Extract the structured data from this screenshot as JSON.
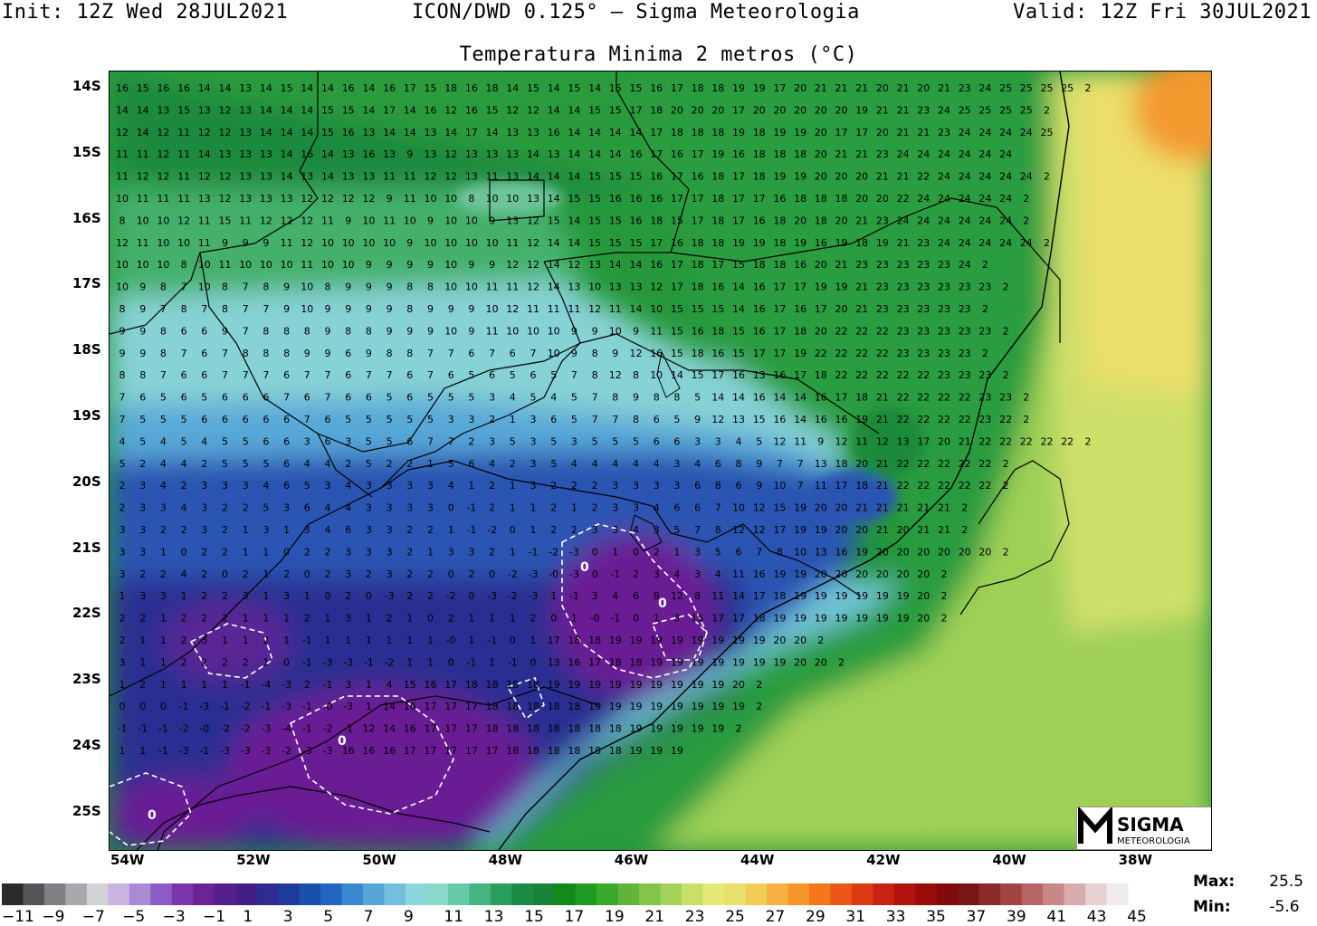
{
  "header": {
    "init": "Init: 12Z Wed 28JUL2021",
    "model": "ICON/DWD 0.125° — Sigma Meteorologia",
    "valid": "Valid: 12Z Fri 30JUL2021"
  },
  "map_title": "Temperatura Minima 2 metros (°C)",
  "lat_ticks": [
    "14S",
    "15S",
    "16S",
    "17S",
    "18S",
    "19S",
    "20S",
    "21S",
    "22S",
    "23S",
    "24S",
    "25S"
  ],
  "lon_ticks": [
    "54W",
    "52W",
    "50W",
    "48W",
    "46W",
    "44W",
    "42W",
    "40W",
    "38W"
  ],
  "colorbar": {
    "labels": [
      "−11",
      "−9",
      "−7",
      "−5",
      "−3",
      "−1",
      "1",
      "3",
      "5",
      "7",
      "9",
      "11",
      "13",
      "15",
      "17",
      "19",
      "21",
      "23",
      "25",
      "27",
      "29",
      "31",
      "33",
      "35",
      "37",
      "39",
      "41",
      "43",
      "45"
    ],
    "colors": [
      "#2b2b2b",
      "#555458",
      "#807f84",
      "#a9a8ad",
      "#d3d2d6",
      "#c9b3e3",
      "#a98ad6",
      "#8e5ac6",
      "#7a34ae",
      "#6c2493",
      "#54208b",
      "#421e86",
      "#2f2b90",
      "#203a9a",
      "#1b4fae",
      "#2366c2",
      "#3a88cf",
      "#58a6d8",
      "#72c0de",
      "#8dd6de",
      "#8ad8c8",
      "#67c9a8",
      "#45b583",
      "#2a9e5f",
      "#1a8a46",
      "#178238",
      "#108a1b",
      "#1f9a22",
      "#3aa92c",
      "#5fb53b",
      "#83c44a",
      "#a6d25a",
      "#c8df68",
      "#e5ea75",
      "#eae06d",
      "#f3cc58",
      "#f6b142",
      "#f69627",
      "#f3761a",
      "#ec5718",
      "#de3a14",
      "#c92212",
      "#b31410",
      "#990c0b",
      "#820a0a",
      "#7a1515",
      "#8e2929",
      "#a34444",
      "#b66464",
      "#c98888",
      "#d8acac",
      "#e7d0d0",
      "#f3ecec"
    ]
  },
  "map": {
    "colors": {
      "cold_purple": "#6a1f95",
      "cold_blue": "#24409a",
      "mid_cyan": "#82d4e0",
      "green": "#2a9e3c",
      "lime": "#a8d45a",
      "yellow": "#ecdf6a",
      "orange": "#f39a2e"
    },
    "zero_contour_label": "0",
    "grid_columns_lon": [
      -54.2,
      -53.9,
      -53.6,
      -53.3,
      -53.0,
      -52.7,
      -52.4,
      -52.1,
      -51.8,
      -51.5,
      -51.2,
      -50.9,
      -50.6,
      -50.3,
      -50.0,
      -49.7,
      -49.4,
      -49.1,
      -48.8,
      -48.5,
      -48.2,
      -47.9,
      -47.6,
      -47.3,
      -47.0,
      -46.7,
      -46.4,
      -46.1,
      -45.8,
      -45.5,
      -45.2,
      -44.9,
      -44.6,
      -44.3,
      -44.0,
      -43.7,
      -43.4,
      -43.1,
      -42.8,
      -42.5,
      -42.2,
      -41.9,
      -41.6,
      -41.3,
      -41.0,
      -40.7,
      -40.4,
      -40.1,
      -39.8,
      -39.5,
      -39.2,
      -38.9,
      -38.6,
      -38.3,
      -38.0,
      -37.7,
      -37.4,
      -37.1
    ],
    "value_rows": [
      {
        "lat": "14S",
        "values": "16 15 16 16 14 14 13 14 15 14 14 16 14 16 17 15 18 16 18 14 15 14 15 14 15 15 16 17 18 18 19 19 17 20 21 21 21 20 21 20 21 23 24 25 25 25 25 2"
      },
      {
        "lat": "",
        "values": "14 14 13 15 13 12 13 14 14 14 15 15 14 17 14 16 12 16 15 12 12 14 14 15 15 17 18 20 20 20 17 20 20 20 20 20 19 21 21 23 24 25 25 25 25 2"
      },
      {
        "lat": "",
        "values": "12 14 12 11 12 12 13 14 14 14 15 16 13 14 14 13 14 17 14 13 13 16 14 14 14 14 17 18 18 18 19 18 19 19 20 17 17 20 21 21 23 24 24 24 24 25"
      },
      {
        "lat": "15S",
        "values": "11 11 12 11 14 13 13 13 14 16 14 13 16 13 9 13 12 13 13 13 14 13 14 14 14 16 17 16 17 19 16 18 18 18 20 21 21 23 24 24 24 24 24 24"
      },
      {
        "lat": "",
        "values": "11 12 12 11 12 12 13 13 14 13 14 13 13 11 11 12 12 13 11 13 14 14 14 15 15 15 16 17 16 18 17 18 19 19 20 20 20 21 21 22 24 24 24 24 24 2"
      },
      {
        "lat": "16S",
        "values": "10 11 11 11 13 12 13 13 13 12 12 12 12 9 11 10 10 8 10 10 13 14 15 15 16 16 16 17 17 18 17 17 16 18 18 18 20 20 22 24 24 24 24 24 2"
      },
      {
        "lat": "",
        "values": "8 10 10 12 11 15 11 12 12 12 11 9 10 11 10 9 10 10 9 13 12 15 14 15 15 16 18 15 17 18 17 16 18 20 18 20 21 23 24 24 24 24 24 24 2"
      },
      {
        "lat": "",
        "values": "12 11 10 10 11 9 9 9 11 12 10 10 10 10 9 10 10 10 10 11 12 14 14 15 15 15 17 16 18 18 19 19 18 19 16 19 18 19 21 23 24 24 24 24 24 2"
      },
      {
        "lat": "17S",
        "values": "10 10 10 8 10 11 10 10 10 11 10 10 9 9 9 9 10 9 9 12 12 14 12 13 14 14 16 17 18 17 15 18 18 16 20 21 23 23 23 23 23 24 2"
      },
      {
        "lat": "",
        "values": "10 9 8 7 10 8 7 8 9 10 8 9 9 9 8 8 10 10 11 11 12 14 13 10 13 13 12 17 18 16 14 16 17 17 19 19 21 23 23 23 23 23 23 2"
      },
      {
        "lat": "18S",
        "values": "8 9 7 8 7 8 7 7 9 10 9 9 9 9 8 9 9 9 10 12 11 11 11 12 11 14 10 15 15 15 14 16 17 16 17 20 21 23 23 23 23 23 2"
      },
      {
        "lat": "",
        "values": "9 9 8 6 6 9 7 8 8 8 9 8 8 9 9 9 10 9 11 10 10 10 9 9 10 9 11 15 16 18 15 16 17 18 20 22 22 22 23 23 23 23 23 2"
      },
      {
        "lat": "",
        "values": "9 9 8 7 6 7 8 8 8 9 9 6 9 8 8 7 7 6 7 6 7 10 9 8 9 12 16 15 18 16 15 17 17 19 22 22 22 22 23 23 23 23 2"
      },
      {
        "lat": "19S",
        "values": "8 8 7 6 6 7 7 7 6 7 7 6 7 7 6 7 6 5 6 5 6 5 7 8 12 8 10 14 15 17 16 13 16 17 18 22 22 22 22 22 23 23 23 2"
      },
      {
        "lat": "",
        "values": "7 6 5 6 5 6 6 6 7 6 7 6 6 5 6 5 5 5 3 4 5 4 5 7 8 9 8 8 5 14 14 16 14 14 16 17 18 21 22 22 22 22 23 23 2"
      },
      {
        "lat": "",
        "values": "7 5 5 5 6 6 6 6 6 7 6 5 5 5 5 5 3 3 2 1 3 6 5 7 7 8 6 5 9 12 13 15 16 14 16 16 19 21 22 22 22 22 23 22 2"
      },
      {
        "lat": "20S",
        "values": "4 5 4 5 4 5 5 6 6 3 6 3 5 5 6 7 7 2 3 5 3 5 3 5 5 5 6 6 3 3 4 5 12 11 9 12 11 12 13 17 20 21 22 22 22 22 22 2"
      },
      {
        "lat": "",
        "values": "5 2 4 4 2 5 5 5 6 4 4 2 5 2 2 1 5 6 4 2 3 5 4 4 4 4 4 3 4 6 8 9 7 7 13 18 20 21 22 22 22 22 22 2"
      },
      {
        "lat": "",
        "values": "2 3 4 2 3 3 3 4 6 5 3 4 3 3 3 3 4 1 2 1 3 2 2 2 3 3 3 3 6 8 6 9 10 7 11 17 18 21 22 22 22 22 22 2"
      },
      {
        "lat": "21S",
        "values": "2 3 3 4 3 2 2 5 3 6 4 4 3 3 3 3 0 -1 2 1 1 2 1 2 3 3 4 6 6 7 10 12 15 19 20 20 21 21 21 21 21 2"
      },
      {
        "lat": "",
        "values": "3 3 2 2 3 2 1 3 1 3 4 6 3 3 2 2 1 -1 -2 0 1 2 2 3 3 4 3 5 7 8 12 12 17 19 19 20 20 21 20 21 21 2"
      },
      {
        "lat": "22S",
        "values": "3 3 1 0 2 2 1 1 0 2 2 3 3 3 2 1 3 3 2 1 -1 -2 -3 0 1 0 2 1 3 5 6 7 8 10 13 16 19 20 20 20 20 20 20 2"
      },
      {
        "lat": "",
        "values": "3 2 2 4 2 0 2 1 2 0 2 3 2 3 2 2 0 2 0 -2 -3 -0 -3 0 -1 2 3 4 3 4 11 16 19 19 20 20 20 20 20 20 2"
      },
      {
        "lat": "",
        "values": "1 3 3 1 2 2 3 1 3 1 0 2 0 -3 2 2 -2 0 -3 -2 -3 1 -1 3 4 6 8 12 8 11 14 17 18 19 19 19 19 19 19 20 2"
      },
      {
        "lat": "23S",
        "values": "2 2 1 2 2 2 1 1 1 2 1 3 1 2 1 0 2 1 1 1 2 0 1 -0 -1 0 1 3 15 17 17 18 19 19 19 19 19 19 19 20 2"
      },
      {
        "lat": "",
        "values": "2 1 1 2 3 1 1 2 1 -1 1 1 1 1 1 1 -0 1 -1 0 1 17 18 18 19 19 19 19 19 19 19 19 20 20 2"
      },
      {
        "lat": "24S",
        "values": "3 1 1 2 2 2 2 1 0 -1 -3 -3 -1 -2 1 1 0 -1 1 -1 0 13 16 17 18 18 19 19 19 19 19 19 19 20 20 2"
      },
      {
        "lat": "",
        "values": "1 2 1 1 1 1 -1 -4 -3 2 -1 3 1 4 15 16 17 18 18 18 18 19 19 19 19 19 19 19 19 19 20 2"
      },
      {
        "lat": "",
        "values": "0 0 0 -1 -3 -1 -2 -1 -3 -1 -0 -3 1 14 16 17 17 17 18 18 18 18 18 19 19 19 19 19 19 19 19 2"
      },
      {
        "lat": "25S",
        "values": "-1 -1 -1 -2 -0 -2 -2 -3 -4 -1 -2 -1 12 14 16 17 17 17 18 18 18 18 18 18 18 19 19 19 19 19 2"
      },
      {
        "lat": "",
        "values": "1 1 -1 -3 -1 -3 -3 -3 -2 -3 -3 16 16 16 17 17 17 17 17 18 18 18 18 18 18 19 19 19"
      }
    ]
  },
  "stats": {
    "max_label": "Max:",
    "max_value": "25.5",
    "min_label": "Min:",
    "min_value": "-5.6"
  },
  "logo": {
    "name": "SIGMA",
    "sub": "METEOROLOGIA",
    "icon": "sigma-m-logo-icon"
  }
}
